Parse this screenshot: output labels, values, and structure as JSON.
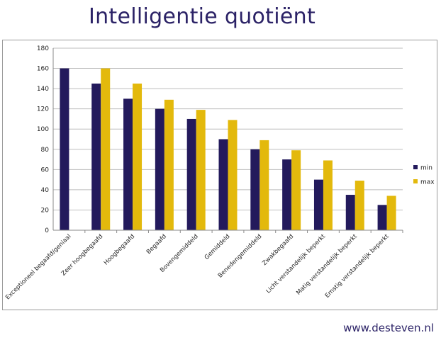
{
  "title": "Intelligentie quotiënt",
  "footer": "www.desteven.nl",
  "colors": {
    "min": "#231a5c",
    "max": "#e3b90c",
    "grid": "#bdbdbd",
    "title": "#2b2266"
  },
  "chart_data": {
    "type": "bar",
    "title": "",
    "xlabel": "",
    "ylabel": "",
    "ylim": [
      0,
      180
    ],
    "yticks": [
      0,
      20,
      40,
      60,
      80,
      100,
      120,
      140,
      160,
      180
    ],
    "grid": true,
    "legend_position": "right",
    "categories": [
      "Exceptioneel begaafd/geniaal",
      "Zeer hoogbegaafd",
      "Hoogbegaafd",
      "Begaafd",
      "Bovengemiddeld",
      "Gemiddeld",
      "Benedengemiddeld",
      "Zwakbegaafd",
      "Licht verstandelijk beperkt",
      "Matig verstandelijk beperkt",
      "Ernstig verstandelijk beperkt"
    ],
    "series": [
      {
        "name": "min",
        "values": [
          160,
          145,
          130,
          120,
          110,
          90,
          80,
          70,
          50,
          35,
          25
        ]
      },
      {
        "name": "max",
        "values": [
          null,
          160,
          145,
          129,
          119,
          109,
          89,
          79,
          69,
          49,
          34
        ]
      }
    ]
  }
}
